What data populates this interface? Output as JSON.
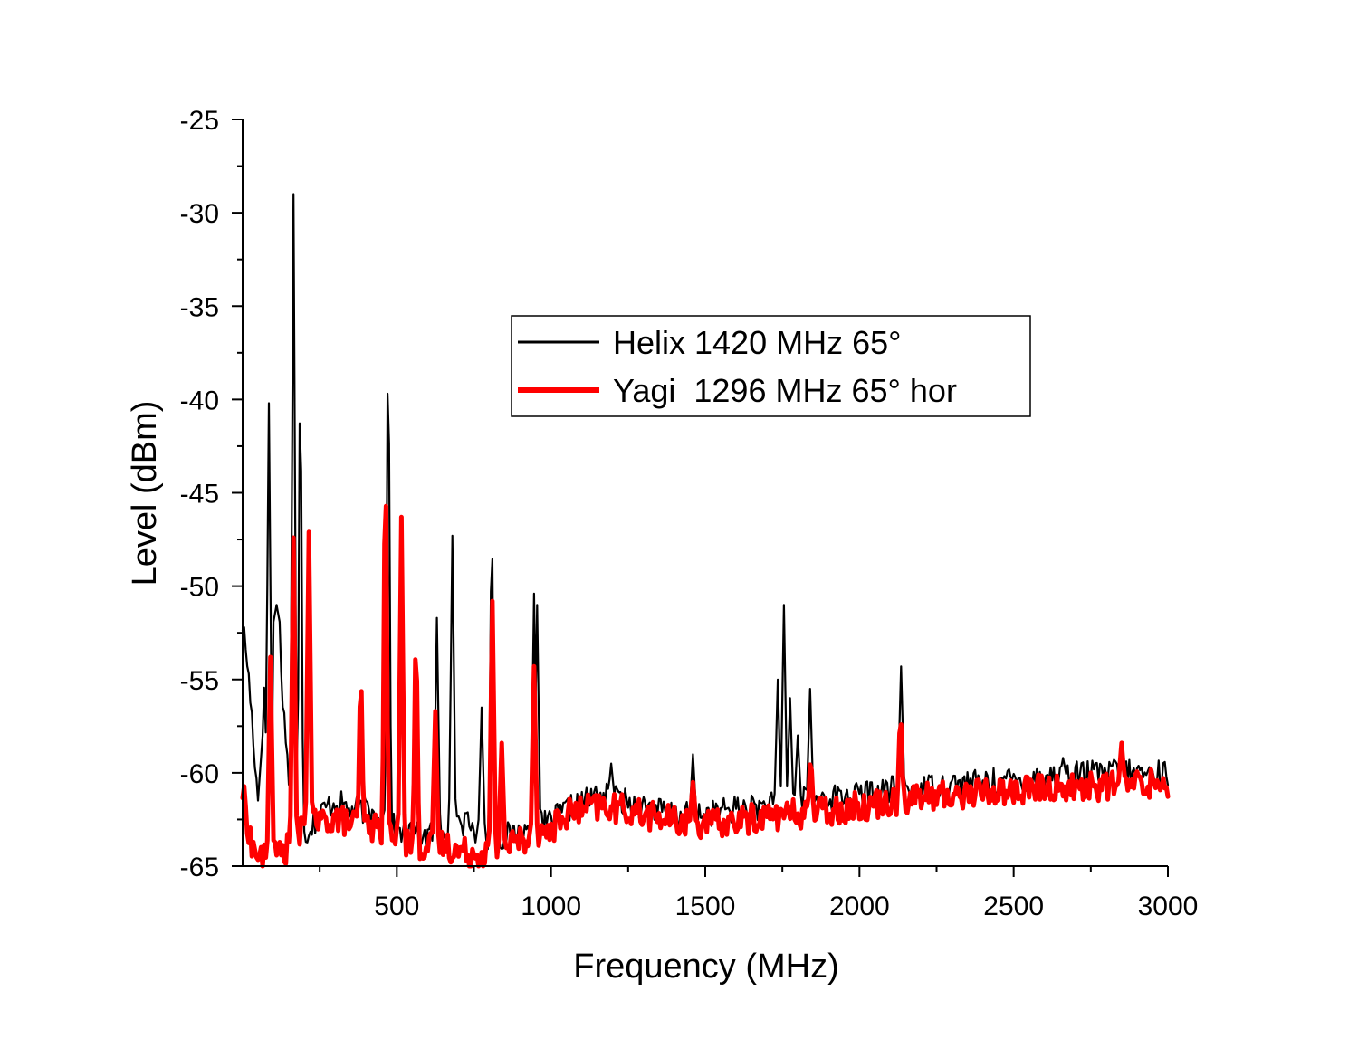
{
  "chart_data": {
    "type": "line",
    "title": "",
    "xlabel": "Frequency (MHz)",
    "ylabel": "Level (dBm)",
    "xlim": [
      0,
      3000
    ],
    "ylim": [
      -65,
      -25
    ],
    "x_ticks": [
      500,
      1000,
      1500,
      2000,
      2500,
      3000
    ],
    "y_ticks": [
      -25,
      -30,
      -35,
      -40,
      -45,
      -50,
      -55,
      -60,
      -65
    ],
    "grid": false,
    "legend_position": "center-right",
    "series": [
      {
        "name": "Helix 1420 MHz 65°",
        "color": "#000000",
        "baseline": [
          [
            0,
            -52
          ],
          [
            15,
            -54
          ],
          [
            30,
            -57
          ],
          [
            50,
            -61.5
          ],
          [
            70,
            -56
          ],
          [
            90,
            -63
          ],
          [
            110,
            -52
          ],
          [
            140,
            -58
          ],
          [
            160,
            -62.8
          ],
          [
            200,
            -63.4
          ],
          [
            260,
            -62
          ],
          [
            300,
            -61.5
          ],
          [
            350,
            -62
          ],
          [
            400,
            -62
          ],
          [
            450,
            -62.5
          ],
          [
            500,
            -63
          ],
          [
            550,
            -63.3
          ],
          [
            600,
            -63.4
          ],
          [
            650,
            -63
          ],
          [
            700,
            -62.5
          ],
          [
            750,
            -63
          ],
          [
            800,
            -63.5
          ],
          [
            850,
            -63.4
          ],
          [
            900,
            -63.2
          ],
          [
            950,
            -63
          ],
          [
            1000,
            -62.6
          ],
          [
            1050,
            -62
          ],
          [
            1100,
            -61.6
          ],
          [
            1150,
            -61.2
          ],
          [
            1200,
            -61.3
          ],
          [
            1250,
            -61.6
          ],
          [
            1300,
            -61.8
          ],
          [
            1350,
            -62
          ],
          [
            1400,
            -62.3
          ],
          [
            1500,
            -62.2
          ],
          [
            1600,
            -61.9
          ],
          [
            1700,
            -61.8
          ],
          [
            1800,
            -61.5
          ],
          [
            1900,
            -61.3
          ],
          [
            2000,
            -61.2
          ],
          [
            2100,
            -60.9
          ],
          [
            2200,
            -60.8
          ],
          [
            2300,
            -60.6
          ],
          [
            2400,
            -60.5
          ],
          [
            2500,
            -60.4
          ],
          [
            2600,
            -60.2
          ],
          [
            2700,
            -60.1
          ],
          [
            2800,
            -60
          ],
          [
            2900,
            -60
          ],
          [
            3000,
            -60
          ]
        ],
        "peaks": [
          [
            165,
            -29
          ],
          [
            187,
            -39
          ],
          [
            85,
            -40.2
          ],
          [
            110,
            -51
          ],
          [
            472,
            -37.3
          ],
          [
            630,
            -51.7
          ],
          [
            680,
            -47.3
          ],
          [
            808,
            -47
          ],
          [
            945,
            -50.4
          ],
          [
            955,
            -51
          ],
          [
            775,
            -56.5
          ],
          [
            1460,
            -59
          ],
          [
            1195,
            -59.5
          ],
          [
            1735,
            -55
          ],
          [
            1755,
            -51
          ],
          [
            1775,
            -56
          ],
          [
            1800,
            -58
          ],
          [
            1840,
            -55.5
          ],
          [
            2135,
            -54.3
          ],
          [
            2855,
            -59.5
          ],
          [
            2825,
            -59.3
          ],
          [
            2660,
            -59.2
          ]
        ],
        "noise": 0.45
      },
      {
        "name": "Yagi  1296 MHz 65° hor",
        "color": "#ff0000",
        "baseline": [
          [
            0,
            -61
          ],
          [
            30,
            -64
          ],
          [
            60,
            -64.6
          ],
          [
            100,
            -64.5
          ],
          [
            150,
            -64
          ],
          [
            200,
            -63
          ],
          [
            260,
            -62.6
          ],
          [
            300,
            -62.4
          ],
          [
            350,
            -62.7
          ],
          [
            400,
            -62.8
          ],
          [
            450,
            -63
          ],
          [
            500,
            -63.6
          ],
          [
            550,
            -63.8
          ],
          [
            600,
            -64
          ],
          [
            650,
            -63.8
          ],
          [
            700,
            -64.2
          ],
          [
            750,
            -64.3
          ],
          [
            800,
            -64.3
          ],
          [
            850,
            -64
          ],
          [
            900,
            -63.5
          ],
          [
            950,
            -63.5
          ],
          [
            1000,
            -63
          ],
          [
            1050,
            -62.2
          ],
          [
            1100,
            -62
          ],
          [
            1150,
            -61.8
          ],
          [
            1200,
            -61.9
          ],
          [
            1250,
            -62
          ],
          [
            1300,
            -62.2
          ],
          [
            1350,
            -62.4
          ],
          [
            1400,
            -62.6
          ],
          [
            1500,
            -62.8
          ],
          [
            1600,
            -62.6
          ],
          [
            1700,
            -62.3
          ],
          [
            1800,
            -62.2
          ],
          [
            1900,
            -62
          ],
          [
            2000,
            -61.8
          ],
          [
            2100,
            -61.5
          ],
          [
            2200,
            -61.3
          ],
          [
            2300,
            -61.2
          ],
          [
            2400,
            -61
          ],
          [
            2500,
            -61
          ],
          [
            2600,
            -60.8
          ],
          [
            2700,
            -60.8
          ],
          [
            2800,
            -60.7
          ],
          [
            2900,
            -60.6
          ],
          [
            3000,
            -60.5
          ]
        ],
        "peaks": [
          [
            90,
            -53.8
          ],
          [
            165,
            -47.4
          ],
          [
            215,
            -47.1
          ],
          [
            383,
            -54.9
          ],
          [
            463,
            -43.9
          ],
          [
            515,
            -46.3
          ],
          [
            562,
            -52.9
          ],
          [
            625,
            -56.7
          ],
          [
            810,
            -50.8
          ],
          [
            840,
            -58.4
          ],
          [
            945,
            -54.3
          ],
          [
            1460,
            -60.5
          ],
          [
            1842,
            -59.3
          ],
          [
            2133,
            -57
          ],
          [
            2850,
            -58.4
          ]
        ],
        "noise": 0.5
      }
    ]
  }
}
